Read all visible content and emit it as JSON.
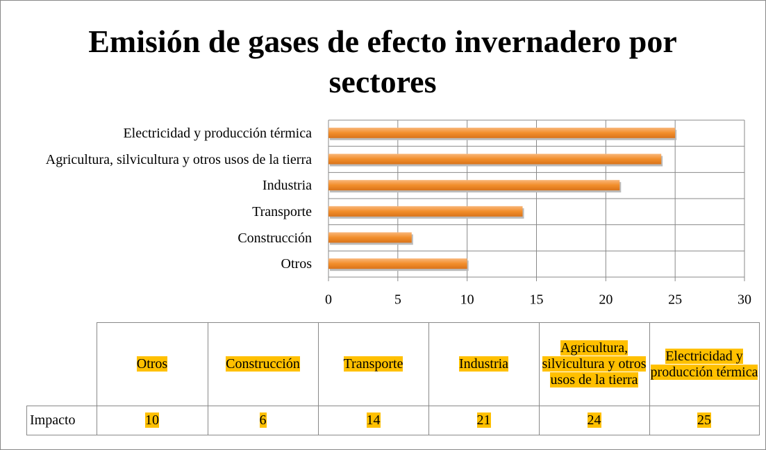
{
  "chart_data": {
    "type": "bar",
    "orientation": "horizontal",
    "title": "Emisión de gases de efecto invernadero por sectores",
    "categories": [
      "Otros",
      "Construcción",
      "Transporte",
      "Industria",
      "Agricultura, silvicultura y otros usos de la tierra",
      "Electricidad y producción térmica"
    ],
    "series": [
      {
        "name": "Impacto",
        "color": "#f28e2b",
        "values": [
          10,
          6,
          14,
          21,
          24,
          25
        ]
      }
    ],
    "xlim": [
      0,
      30
    ],
    "xticks": [
      0,
      5,
      10,
      15,
      20,
      25,
      30
    ],
    "grid": true,
    "data_table": true
  }
}
